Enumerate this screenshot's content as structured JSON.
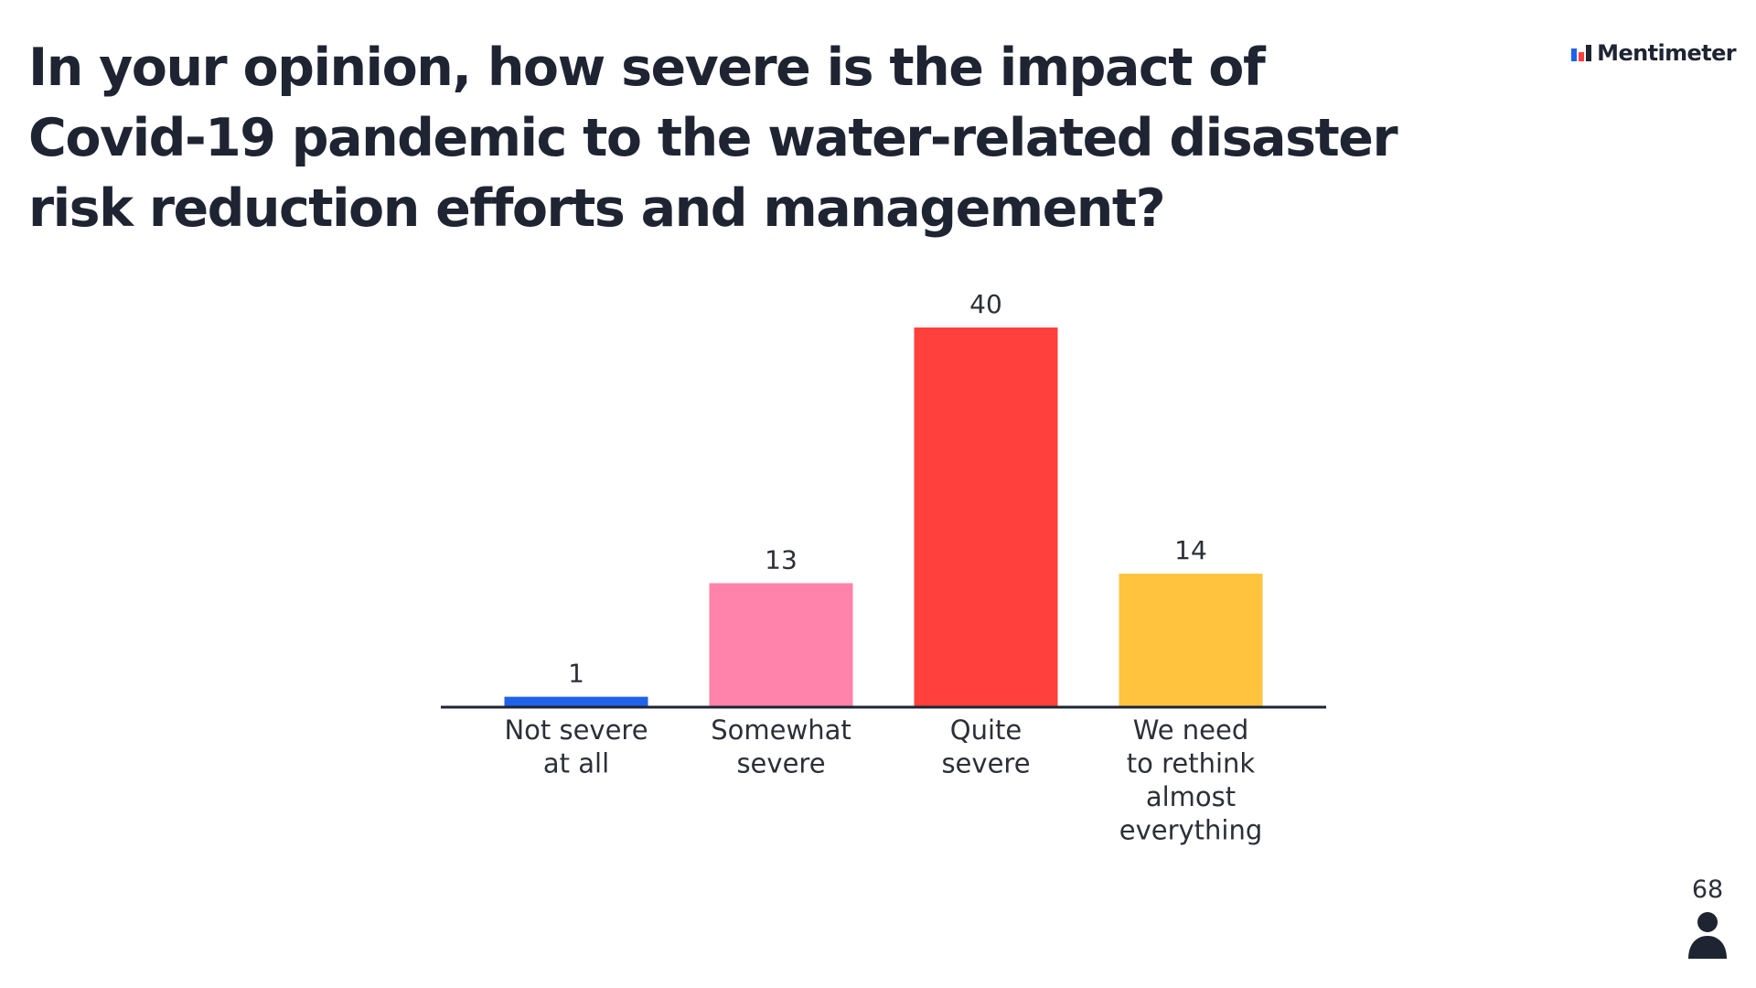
{
  "slide": {
    "title": "In your opinion, how severe is the impact of Covid-19 pandemic to the water-related disaster risk reduction efforts and management?"
  },
  "brand": {
    "name": "Mentimeter",
    "icon": "mentimeter-logo-icon"
  },
  "participants": {
    "count": "68",
    "icon": "person-icon"
  },
  "chart_data": {
    "type": "bar",
    "categories": [
      [
        "Not severe",
        "at all"
      ],
      [
        "Somewhat",
        "severe"
      ],
      [
        "Quite",
        "severe"
      ],
      [
        "We need",
        "to rethink",
        "almost",
        "everything"
      ]
    ],
    "values": [
      1,
      13,
      40,
      14
    ],
    "colors": [
      "#1f63ec",
      "#ff83aa",
      "#ff403d",
      "#ffc33d"
    ],
    "title": "",
    "xlabel": "",
    "ylabel": "",
    "ylim": [
      0,
      40
    ],
    "grid": false,
    "legend": "none",
    "baseline_color": "#1f2432"
  }
}
